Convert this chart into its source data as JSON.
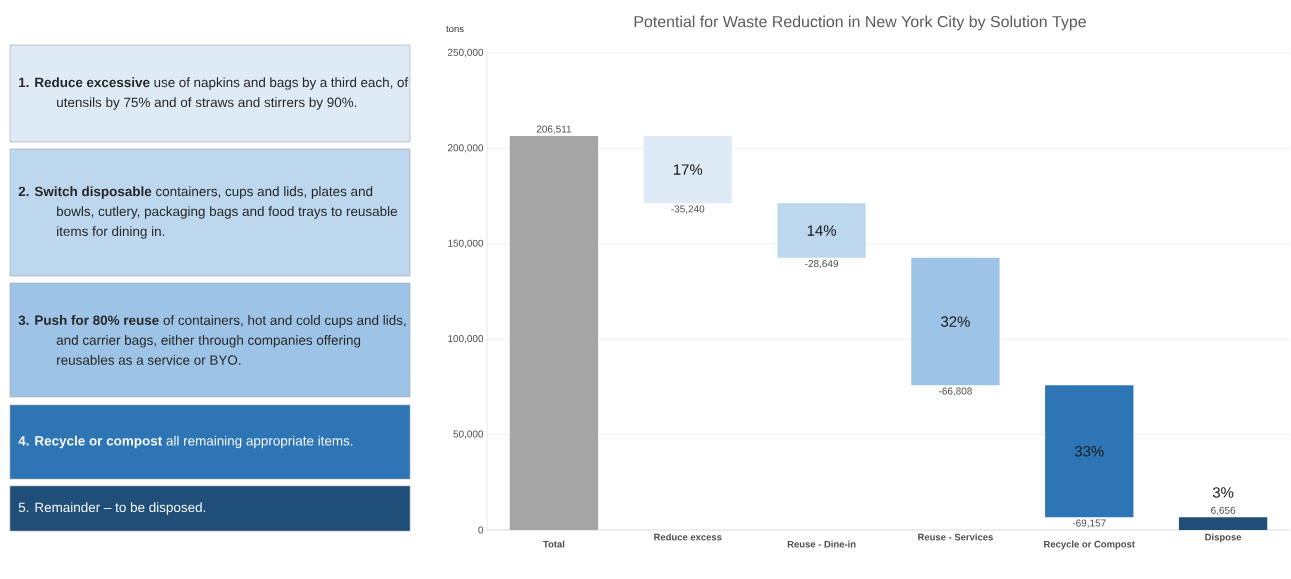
{
  "chart_data": {
    "type": "bar",
    "title": "Potential for Waste Reduction in New York City by Solution Type",
    "ylabel": "tons",
    "categories": [
      "Total",
      "Reduce excess",
      "Reuse - Dine-in",
      "Reuse - Services",
      "Recycle or Compost",
      "Dispose"
    ],
    "values": [
      206511,
      -35240,
      -28649,
      -66808,
      -69157,
      6656
    ],
    "base": [
      0,
      206511,
      171271,
      142622,
      75814,
      0
    ],
    "colors": [
      "#a5a5a5",
      "#deebf7",
      "#bdd7ee",
      "#9dc3e6",
      "#2e75b6",
      "#1f4e79"
    ],
    "value_labels": [
      "206,511",
      "-35,240",
      "-28,649",
      "-66,808",
      "-69,157",
      "6,656"
    ],
    "ylim": [
      0,
      250000
    ],
    "yticks": [
      {
        "value": 0,
        "label": "0"
      },
      {
        "value": 50000,
        "label": "50,000"
      },
      {
        "value": 100000,
        "label": "100,000"
      },
      {
        "value": 150000,
        "label": "150,000"
      },
      {
        "value": 200000,
        "label": "200,000"
      },
      {
        "value": 250000,
        "label": "250,000"
      }
    ],
    "grid": "y",
    "annotations": [
      "17%",
      "14%",
      "32%",
      "33%",
      "3%",
      "**1. Reduce excessive** use of napkins and bags by a third each, of utensils by 75% and of straws and stirrers by 90%.",
      "**2. Switch disposable** containers, cups and lids, plates and bowls, cutlery, packaging bags and food trays to reusable items for dining in.",
      "**3. Push for 80% reuse** of containers, hot and cold cups and lids, and carrier bags, either through companies offering reusables as a service or BYO.",
      "**4. Recycle or compost** all remaining appropriate items.",
      "5. Remainder – to be disposed."
    ]
  }
}
